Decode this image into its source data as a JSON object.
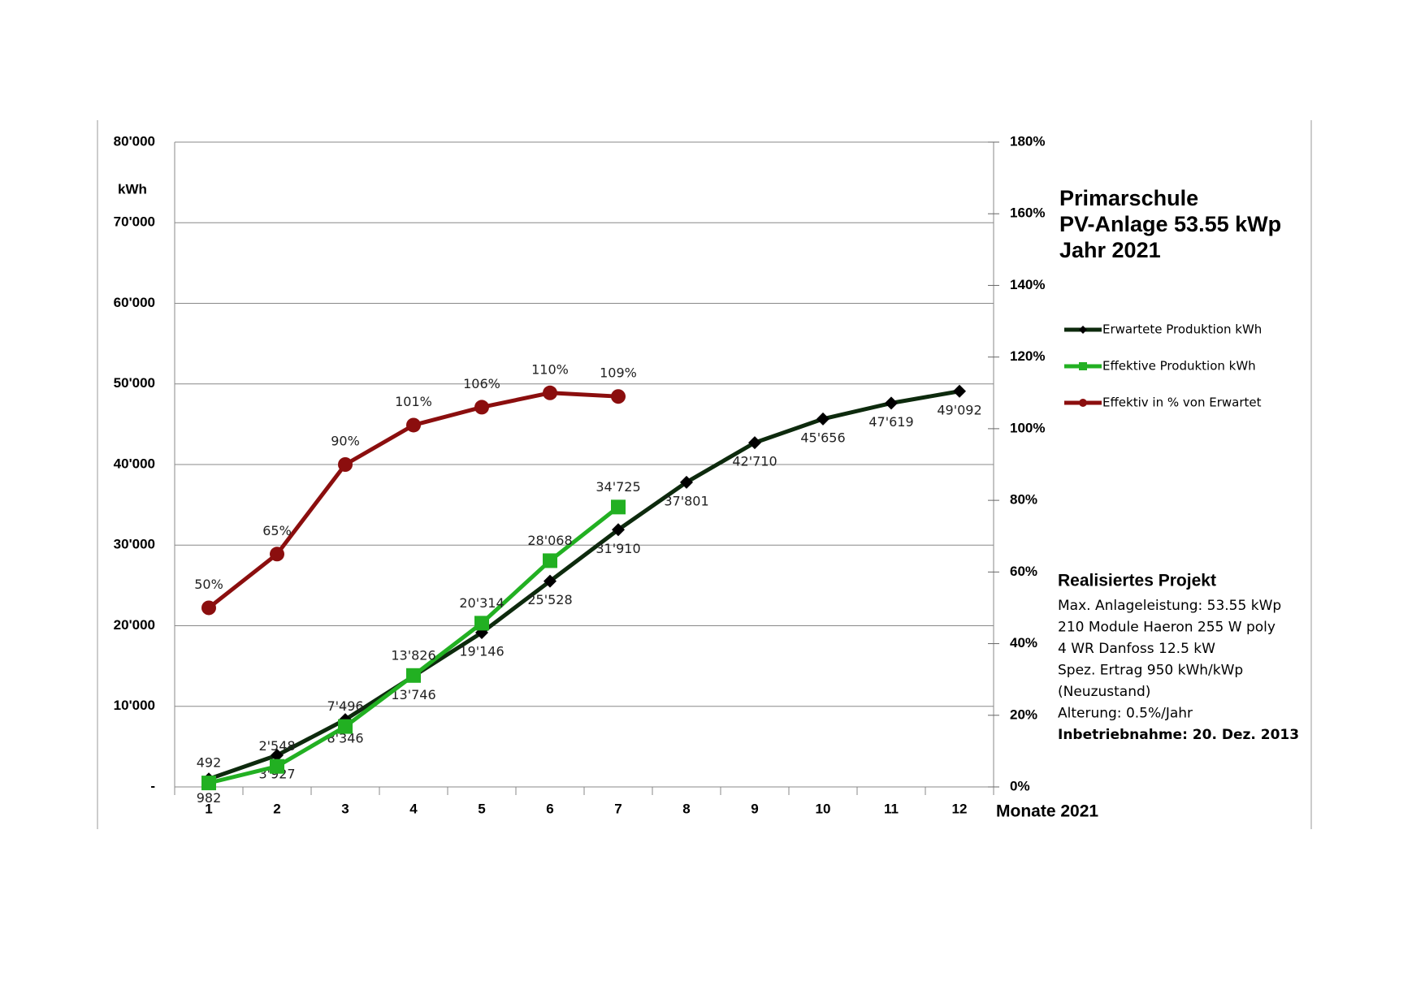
{
  "chart_data": {
    "type": "line",
    "title": [
      "Primarschule",
      "PV-Anlage 53.55 kWp",
      "Jahr 2021"
    ],
    "y_label": "kWh",
    "x_label": "Monate 2021",
    "categories": [
      "1",
      "2",
      "3",
      "4",
      "5",
      "6",
      "7",
      "8",
      "9",
      "10",
      "11",
      "12"
    ],
    "ylim": [
      0,
      80000
    ],
    "yticks": [
      {
        "value": 0,
        "label": "-"
      },
      {
        "value": 10000,
        "label": "10'000"
      },
      {
        "value": 20000,
        "label": "20'000"
      },
      {
        "value": 30000,
        "label": "30'000"
      },
      {
        "value": 40000,
        "label": "40'000"
      },
      {
        "value": 50000,
        "label": "50'000"
      },
      {
        "value": 60000,
        "label": "60'000"
      },
      {
        "value": 70000,
        "label": "70'000"
      },
      {
        "value": 80000,
        "label": "80'000"
      }
    ],
    "y2lim": [
      0,
      180
    ],
    "y2ticks": [
      {
        "value": 0,
        "label": "0%"
      },
      {
        "value": 20,
        "label": "20%"
      },
      {
        "value": 40,
        "label": "40%"
      },
      {
        "value": 60,
        "label": "60%"
      },
      {
        "value": 80,
        "label": "80%"
      },
      {
        "value": 100,
        "label": "100%"
      },
      {
        "value": 120,
        "label": "120%"
      },
      {
        "value": 140,
        "label": "140%"
      },
      {
        "value": 160,
        "label": "160%"
      },
      {
        "value": 180,
        "label": "180%"
      }
    ],
    "grid": true,
    "series": [
      {
        "name": "Erwartete Produktion kWh",
        "color": "#0d2a0d",
        "values": [
          982,
          3927,
          8346,
          13746,
          19146,
          25528,
          31910,
          37801,
          42710,
          45656,
          47619,
          49092
        ],
        "value_labels": [
          "982",
          "3'927",
          "8'346",
          "13'746",
          "19'146",
          "25'528",
          "31'910",
          "37'801",
          "42'710",
          "45'656",
          "47'619",
          "49'092"
        ]
      },
      {
        "name": "Effektive Produktion kWh",
        "color": "#22b022",
        "values": [
          492,
          2548,
          7496,
          13826,
          20314,
          28068,
          34725,
          null,
          null,
          null,
          null,
          null
        ],
        "value_labels": [
          "492",
          "2'548",
          "7'496",
          "13'826",
          "20'314",
          "28'068",
          "34'725",
          null,
          null,
          null,
          null,
          null
        ]
      },
      {
        "name": "Effektiv in % von Erwartet",
        "color": "#8b0e0e",
        "axis": "y2",
        "values": [
          50,
          65,
          90,
          101,
          106,
          110,
          109,
          null,
          null,
          null,
          null,
          null
        ],
        "value_labels": [
          "50%",
          "65%",
          "90%",
          "101%",
          "106%",
          "110%",
          "109%",
          null,
          null,
          null,
          null,
          null
        ]
      }
    ],
    "notes": {
      "heading": "Realisiertes Projekt",
      "lines": [
        "Max. Anlageleistung: 53.55 kWp",
        "210 Module Haeron 255 W poly",
        "4 WR Danfoss 12.5 kW",
        "Spez. Ertrag 950 kWh/kWp",
        "(Neuzustand)",
        "Alterung: 0.5%/Jahr"
      ],
      "footer": "Inbetriebnahme: 20. Dez. 2013"
    }
  }
}
